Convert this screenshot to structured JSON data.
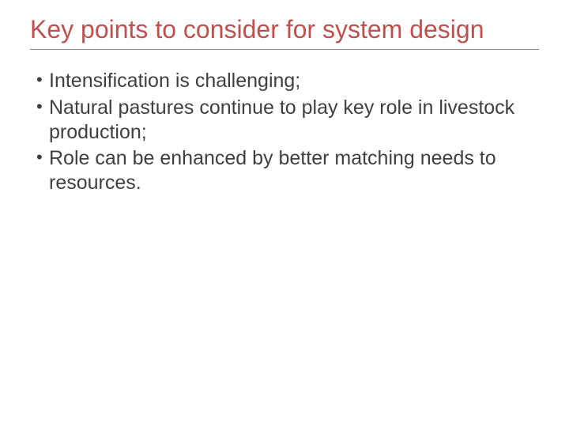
{
  "slide": {
    "title": "Key points to consider for system design",
    "title_color": "#c0504d",
    "title_fontsize": 32,
    "body_color": "#3f3f3f",
    "body_fontsize": 25,
    "background_color": "#ffffff",
    "divider_color": "#888888",
    "bullets": [
      "Intensification is challenging;",
      "Natural pastures continue to play key role in livestock production;",
      "Role can be enhanced by better matching needs to resources."
    ]
  }
}
